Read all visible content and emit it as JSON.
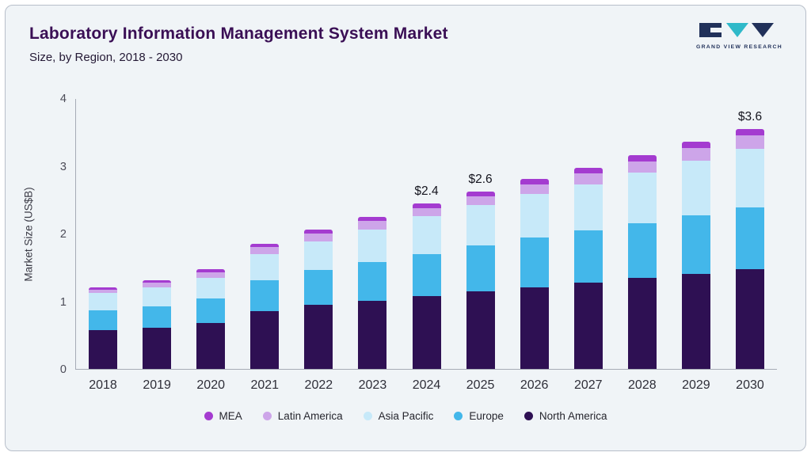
{
  "header": {
    "title": "Laboratory Information Management System Market",
    "subtitle": "Size, by Region, 2018 - 2030",
    "brand": "GRAND VIEW RESEARCH"
  },
  "colors": {
    "card_bg": "#f0f4f7",
    "title_text": "#3a0f55",
    "axis": "#a6abb5",
    "brand_navy": "#21315a",
    "brand_teal": "#2fb9c9"
  },
  "chart_data": {
    "type": "bar",
    "variant": "stacked",
    "title": "Laboratory Information Management System Market",
    "subtitle": "Size, by Region, 2018 - 2030",
    "xlabel": "",
    "ylabel": "Market Size (US$B)",
    "ylim": [
      0,
      4
    ],
    "yticks": [
      0,
      1,
      2,
      3,
      4
    ],
    "grid": false,
    "legend_position": "bottom",
    "categories": [
      "2018",
      "2019",
      "2020",
      "2021",
      "2022",
      "2023",
      "2024",
      "2025",
      "2026",
      "2027",
      "2028",
      "2029",
      "2030"
    ],
    "series": [
      {
        "name": "North America",
        "color": "#2e1053",
        "values": [
          0.57,
          0.61,
          0.68,
          0.85,
          0.95,
          1.01,
          1.08,
          1.15,
          1.21,
          1.27,
          1.34,
          1.4,
          1.47
        ]
      },
      {
        "name": "Europe",
        "color": "#43b7ea",
        "values": [
          0.29,
          0.31,
          0.36,
          0.46,
          0.51,
          0.57,
          0.62,
          0.68,
          0.73,
          0.78,
          0.81,
          0.87,
          0.92
        ]
      },
      {
        "name": "Asia Pacific",
        "color": "#c7e9f9",
        "values": [
          0.26,
          0.29,
          0.31,
          0.39,
          0.42,
          0.48,
          0.56,
          0.59,
          0.64,
          0.68,
          0.75,
          0.81,
          0.86
        ]
      },
      {
        "name": "Latin America",
        "color": "#cda5e9",
        "values": [
          0.05,
          0.06,
          0.08,
          0.1,
          0.12,
          0.13,
          0.12,
          0.13,
          0.15,
          0.16,
          0.17,
          0.18,
          0.2
        ]
      },
      {
        "name": "MEA",
        "color": "#a43bd0",
        "values": [
          0.03,
          0.04,
          0.05,
          0.05,
          0.06,
          0.06,
          0.06,
          0.07,
          0.08,
          0.08,
          0.09,
          0.1,
          0.1
        ]
      }
    ],
    "totals": [
      1.2,
      1.31,
      1.48,
      1.85,
      2.06,
      2.25,
      2.44,
      2.62,
      2.81,
      2.97,
      3.16,
      3.36,
      3.55
    ],
    "annotations": [
      {
        "category": "2024",
        "label": "$2.4"
      },
      {
        "category": "2025",
        "label": "$2.6"
      },
      {
        "category": "2030",
        "label": "$3.6"
      }
    ],
    "legend_order": [
      "MEA",
      "Latin America",
      "Asia Pacific",
      "Europe",
      "North America"
    ]
  }
}
